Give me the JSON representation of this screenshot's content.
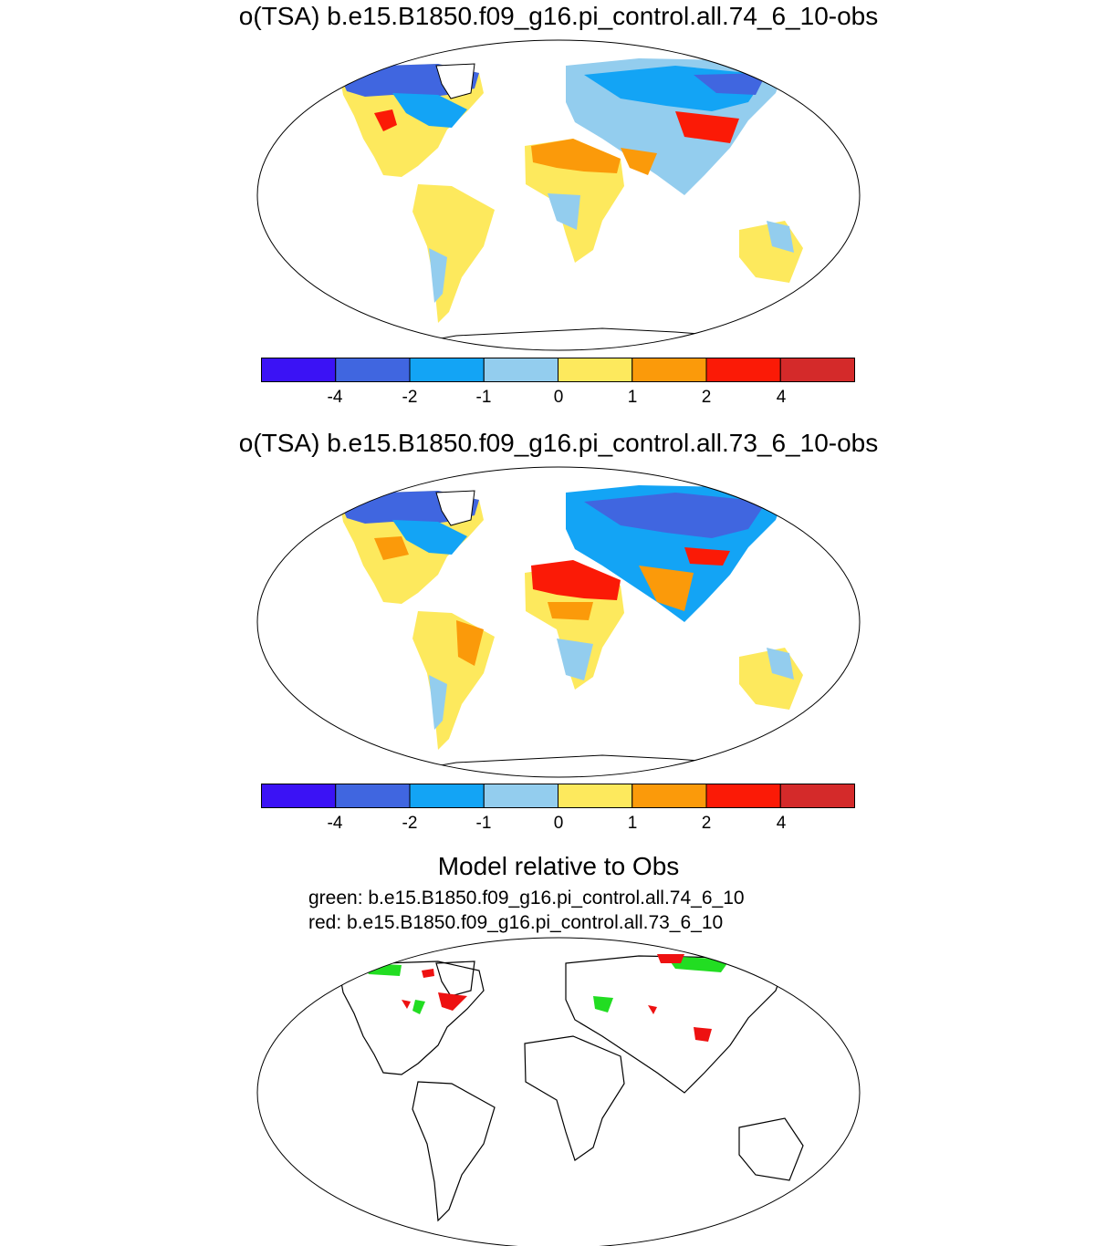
{
  "panels": [
    {
      "title": "o(TSA) b.e15.B1850.f09_g16.pi_control.all.74_6_10-obs"
    },
    {
      "title": "o(TSA) b.e15.B1850.f09_g16.pi_control.all.73_6_10-obs"
    }
  ],
  "colorbar": {
    "colors": [
      "#3b12f5",
      "#4066e0",
      "#13a4f5",
      "#93cdee",
      "#fde95d",
      "#fb9a0a",
      "#fb1a06",
      "#d42a2a"
    ],
    "tick_labels": [
      "-4",
      "-2",
      "-1",
      "0",
      "1",
      "2",
      "4"
    ]
  },
  "comparison": {
    "title": "Model relative to Obs",
    "green_label": "green: b.e15.B1850.f09_g16.pi_control.all.74_6_10",
    "red_label": "red: b.e15.B1850.f09_g16.pi_control.all.73_6_10",
    "green_color": "#22dd22",
    "red_color": "#ee1111"
  }
}
